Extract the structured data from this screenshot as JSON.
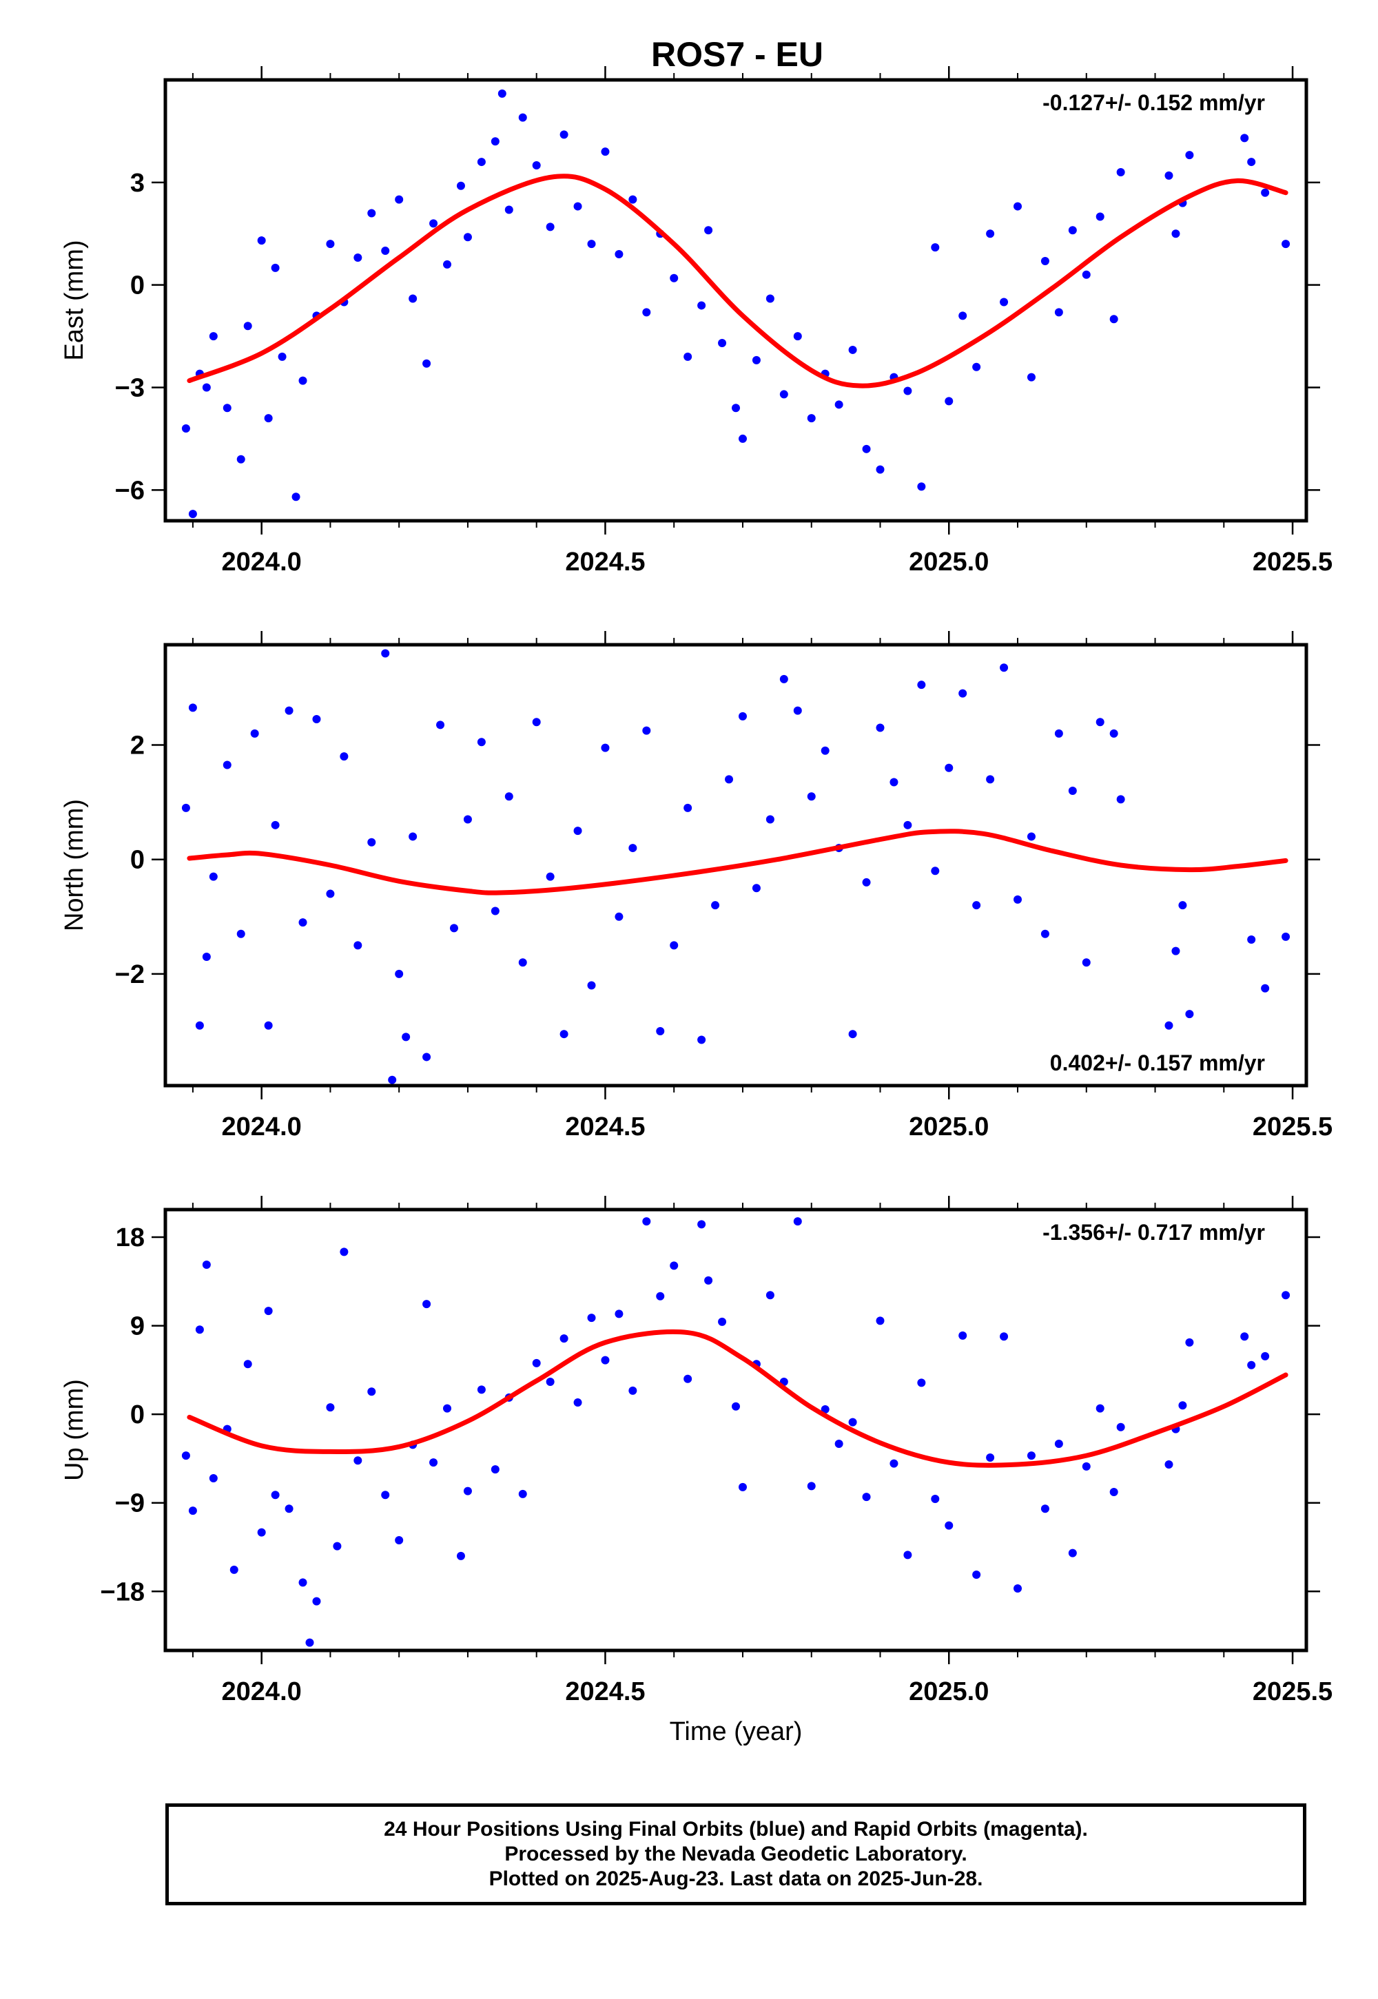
{
  "title": "ROS7 - EU",
  "footer": {
    "line1": "24 Hour Positions Using Final Orbits (blue) and Rapid Orbits (magenta).",
    "line2": "Processed by the Nevada Geodetic Laboratory.",
    "line3": "Plotted on 2025-Aug-23. Last data on 2025-Jun-28."
  },
  "colors": {
    "points": "#0000ff",
    "fit": "#ff0000",
    "frame": "#000000"
  },
  "chart_data": [
    {
      "type": "scatter",
      "panel": "east",
      "title": "ROS7 - EU",
      "xlabel": "",
      "ylabel": "East (mm)",
      "xlim": [
        2023.86,
        2025.52
      ],
      "ylim": [
        -6.9,
        6.0
      ],
      "xticks": [
        2024.0,
        2024.5,
        2025.0,
        2025.5
      ],
      "xtick_labels": [
        "2024.0",
        "2024.5",
        "2025.0",
        "2025.5"
      ],
      "yticks": [
        -6,
        -3,
        0,
        3
      ],
      "ytick_labels": [
        "−6",
        "−3",
        "0",
        "3"
      ],
      "rate_label": "-0.127+/- 0.152 mm/yr",
      "rate_position": "top-right",
      "fit": {
        "name": "",
        "x": [
          2023.895,
          2024.0,
          2024.1,
          2024.2,
          2024.3,
          2024.42,
          2024.5,
          2024.6,
          2024.7,
          2024.8,
          2024.87,
          2024.95,
          2025.05,
          2025.15,
          2025.25,
          2025.35,
          2025.42,
          2025.49
        ],
        "y": [
          -2.8,
          -2.0,
          -0.7,
          0.8,
          2.2,
          3.15,
          2.8,
          1.2,
          -0.9,
          -2.5,
          -2.95,
          -2.6,
          -1.5,
          -0.1,
          1.4,
          2.6,
          3.05,
          2.7
        ]
      },
      "points": {
        "x": [
          2023.89,
          2023.9,
          2023.91,
          2023.92,
          2023.93,
          2023.95,
          2023.97,
          2023.98,
          2024.0,
          2024.01,
          2024.02,
          2024.03,
          2024.05,
          2024.06,
          2024.08,
          2024.1,
          2024.12,
          2024.14,
          2024.16,
          2024.18,
          2024.2,
          2024.22,
          2024.24,
          2024.25,
          2024.27,
          2024.29,
          2024.3,
          2024.32,
          2024.34,
          2024.35,
          2024.36,
          2024.38,
          2024.4,
          2024.42,
          2024.44,
          2024.46,
          2024.48,
          2024.5,
          2024.52,
          2024.54,
          2024.56,
          2024.58,
          2024.6,
          2024.62,
          2024.64,
          2024.65,
          2024.67,
          2024.69,
          2024.7,
          2024.72,
          2024.74,
          2024.76,
          2024.78,
          2024.8,
          2024.82,
          2024.84,
          2024.86,
          2024.88,
          2024.9,
          2024.92,
          2024.94,
          2024.96,
          2024.98,
          2025.0,
          2025.02,
          2025.04,
          2025.06,
          2025.08,
          2025.1,
          2025.12,
          2025.14,
          2025.16,
          2025.18,
          2025.2,
          2025.22,
          2025.24,
          2025.25,
          2025.32,
          2025.33,
          2025.34,
          2025.35,
          2025.43,
          2025.44,
          2025.46,
          2025.49
        ],
        "y": [
          -4.2,
          -6.7,
          -2.6,
          -3.0,
          -1.5,
          -3.6,
          -5.1,
          -1.2,
          1.3,
          -3.9,
          0.5,
          -2.1,
          -6.2,
          -2.8,
          -0.9,
          1.2,
          -0.5,
          0.8,
          2.1,
          1.0,
          2.5,
          -0.4,
          -2.3,
          1.8,
          0.6,
          2.9,
          1.4,
          3.6,
          4.2,
          5.6,
          2.2,
          4.9,
          3.5,
          1.7,
          4.4,
          2.3,
          1.2,
          3.9,
          0.9,
          2.5,
          -0.8,
          1.5,
          0.2,
          -2.1,
          -0.6,
          1.6,
          -1.7,
          -3.6,
          -4.5,
          -2.2,
          -0.4,
          -3.2,
          -1.5,
          -3.9,
          -2.6,
          -3.5,
          -1.9,
          -4.8,
          -5.4,
          -2.7,
          -3.1,
          -5.9,
          1.1,
          -3.4,
          -0.9,
          -2.4,
          1.5,
          -0.5,
          2.3,
          -2.7,
          0.7,
          -0.8,
          1.6,
          0.3,
          2.0,
          -1.0,
          3.3,
          3.2,
          1.5,
          2.4,
          3.8,
          4.3,
          3.6,
          2.7,
          1.2
        ]
      }
    },
    {
      "type": "scatter",
      "panel": "north",
      "xlabel": "",
      "ylabel": "North (mm)",
      "xlim": [
        2023.86,
        2025.52
      ],
      "ylim": [
        -3.95,
        3.75
      ],
      "xticks": [
        2024.0,
        2024.5,
        2025.0,
        2025.5
      ],
      "xtick_labels": [
        "2024.0",
        "2024.5",
        "2025.0",
        "2025.5"
      ],
      "yticks": [
        -2,
        0,
        2
      ],
      "ytick_labels": [
        "−2",
        "0",
        "2"
      ],
      "rate_label": "0.402+/- 0.157 mm/yr",
      "rate_position": "bottom-right",
      "fit": {
        "name": "",
        "x": [
          2023.895,
          2023.95,
          2024.0,
          2024.1,
          2024.2,
          2024.3,
          2024.35,
          2024.45,
          2024.6,
          2024.75,
          2024.9,
          2024.97,
          2025.05,
          2025.15,
          2025.25,
          2025.35,
          2025.42,
          2025.49
        ],
        "y": [
          0.02,
          0.08,
          0.1,
          -0.1,
          -0.38,
          -0.55,
          -0.58,
          -0.5,
          -0.28,
          0.0,
          0.35,
          0.48,
          0.45,
          0.15,
          -0.1,
          -0.18,
          -0.12,
          -0.02
        ]
      },
      "points": {
        "x": [
          2023.89,
          2023.9,
          2023.91,
          2023.92,
          2023.93,
          2023.95,
          2023.97,
          2023.99,
          2024.01,
          2024.02,
          2024.04,
          2024.06,
          2024.08,
          2024.1,
          2024.12,
          2024.14,
          2024.16,
          2024.18,
          2024.19,
          2024.2,
          2024.21,
          2024.22,
          2024.24,
          2024.26,
          2024.28,
          2024.3,
          2024.32,
          2024.34,
          2024.36,
          2024.38,
          2024.4,
          2024.42,
          2024.44,
          2024.46,
          2024.48,
          2024.5,
          2024.52,
          2024.54,
          2024.56,
          2024.58,
          2024.6,
          2024.62,
          2024.64,
          2024.66,
          2024.68,
          2024.7,
          2024.72,
          2024.74,
          2024.76,
          2024.78,
          2024.8,
          2024.82,
          2024.84,
          2024.86,
          2024.88,
          2024.9,
          2024.92,
          2024.94,
          2024.96,
          2024.98,
          2025.0,
          2025.02,
          2025.04,
          2025.06,
          2025.08,
          2025.1,
          2025.12,
          2025.14,
          2025.16,
          2025.18,
          2025.2,
          2025.22,
          2025.24,
          2025.25,
          2025.32,
          2025.33,
          2025.34,
          2025.35,
          2025.44,
          2025.46,
          2025.49
        ],
        "y": [
          0.9,
          2.65,
          -2.9,
          -1.7,
          -0.3,
          1.65,
          -1.3,
          2.2,
          -2.9,
          0.6,
          2.6,
          -1.1,
          2.45,
          -0.6,
          1.8,
          -1.5,
          0.3,
          3.6,
          -3.85,
          -2.0,
          -3.1,
          0.4,
          -3.45,
          2.35,
          -1.2,
          0.7,
          2.05,
          -0.9,
          1.1,
          -1.8,
          2.4,
          -0.3,
          -3.05,
          0.5,
          -2.2,
          1.95,
          -1.0,
          0.2,
          2.25,
          -3.0,
          -1.5,
          0.9,
          -3.15,
          -0.8,
          1.4,
          2.5,
          -0.5,
          0.7,
          3.15,
          2.6,
          1.1,
          1.9,
          0.2,
          -3.05,
          -0.4,
          2.3,
          1.35,
          0.6,
          3.05,
          -0.2,
          1.6,
          2.9,
          -0.8,
          1.4,
          3.35,
          -0.7,
          0.4,
          -1.3,
          2.2,
          1.2,
          -1.8,
          2.4,
          2.2,
          1.05,
          -2.9,
          -1.6,
          -0.8,
          -2.7,
          -1.4,
          -2.25,
          -1.35
        ]
      }
    },
    {
      "type": "scatter",
      "panel": "up",
      "xlabel": "Time (year)",
      "ylabel": "Up (mm)",
      "xlim": [
        2023.86,
        2025.52
      ],
      "ylim": [
        -24,
        20.8
      ],
      "xticks": [
        2024.0,
        2024.5,
        2025.0,
        2025.5
      ],
      "xtick_labels": [
        "2024.0",
        "2024.5",
        "2025.0",
        "2025.5"
      ],
      "yticks": [
        -18,
        -9,
        0,
        9,
        18
      ],
      "ytick_labels": [
        "−18",
        "−9",
        "0",
        "9",
        "18"
      ],
      "rate_label": "-1.356+/- 0.717 mm/yr",
      "rate_position": "top-right",
      "fit": {
        "name": "",
        "x": [
          2023.895,
          2024.0,
          2024.1,
          2024.2,
          2024.3,
          2024.4,
          2024.5,
          2024.62,
          2024.7,
          2024.8,
          2024.9,
          2025.0,
          2025.1,
          2025.2,
          2025.3,
          2025.4,
          2025.49
        ],
        "y": [
          -0.3,
          -3.2,
          -3.8,
          -3.3,
          -0.7,
          3.4,
          7.3,
          8.3,
          5.7,
          0.7,
          -2.9,
          -4.9,
          -5.1,
          -4.2,
          -1.9,
          0.8,
          4.0
        ]
      },
      "points": {
        "x": [
          2023.89,
          2023.9,
          2023.91,
          2023.92,
          2023.93,
          2023.95,
          2023.96,
          2023.98,
          2024.0,
          2024.01,
          2024.02,
          2024.04,
          2024.06,
          2024.07,
          2024.08,
          2024.1,
          2024.11,
          2024.12,
          2024.14,
          2024.16,
          2024.18,
          2024.2,
          2024.22,
          2024.24,
          2024.25,
          2024.27,
          2024.29,
          2024.3,
          2024.32,
          2024.34,
          2024.36,
          2024.38,
          2024.4,
          2024.42,
          2024.44,
          2024.46,
          2024.48,
          2024.5,
          2024.52,
          2024.54,
          2024.56,
          2024.58,
          2024.6,
          2024.62,
          2024.64,
          2024.65,
          2024.67,
          2024.69,
          2024.7,
          2024.72,
          2024.74,
          2024.76,
          2024.78,
          2024.8,
          2024.82,
          2024.84,
          2024.86,
          2024.88,
          2024.9,
          2024.92,
          2024.94,
          2024.96,
          2024.98,
          2025.0,
          2025.02,
          2025.04,
          2025.06,
          2025.08,
          2025.1,
          2025.12,
          2025.14,
          2025.16,
          2025.18,
          2025.2,
          2025.22,
          2025.24,
          2025.25,
          2025.32,
          2025.33,
          2025.34,
          2025.35,
          2025.43,
          2025.44,
          2025.46,
          2025.49
        ],
        "y": [
          -4.2,
          -9.8,
          8.6,
          15.2,
          -6.5,
          -1.5,
          -15.8,
          5.1,
          -12.0,
          10.5,
          -8.2,
          -9.6,
          -17.1,
          -23.2,
          -19.0,
          0.7,
          -13.4,
          16.5,
          -4.7,
          2.3,
          -8.2,
          -12.8,
          -3.1,
          11.2,
          -4.9,
          0.6,
          -14.4,
          -7.8,
          2.5,
          -5.6,
          1.7,
          -8.1,
          5.2,
          3.3,
          7.7,
          1.2,
          9.8,
          5.5,
          10.2,
          2.4,
          19.6,
          12.0,
          15.1,
          3.6,
          19.3,
          13.6,
          9.4,
          0.8,
          -7.4,
          5.1,
          12.1,
          3.3,
          19.6,
          -7.3,
          0.5,
          -3.0,
          -0.8,
          -8.4,
          9.5,
          -5.0,
          -14.3,
          3.2,
          -8.6,
          -11.3,
          8.0,
          -16.3,
          -4.4,
          7.9,
          -17.7,
          -4.2,
          -9.6,
          -3.0,
          -14.1,
          -5.3,
          0.6,
          -7.9,
          -1.3,
          -5.1,
          -1.5,
          0.9,
          7.3,
          7.9,
          5.0,
          5.9,
          12.1
        ]
      }
    }
  ]
}
